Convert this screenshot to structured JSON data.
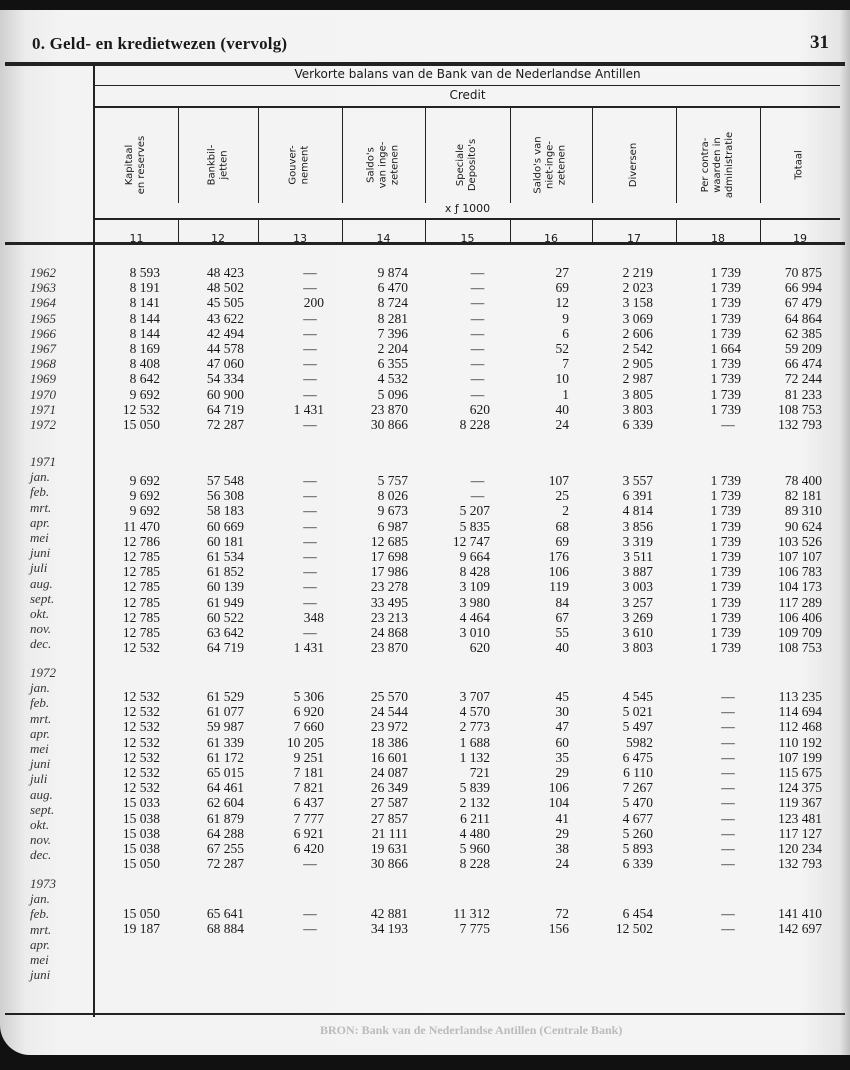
{
  "header": {
    "section_title": "0. Geld- en kredietwezen (vervolg)",
    "page_number": "31"
  },
  "table": {
    "title": "Verkorte balans van de Bank van de Nederlandse Antillen",
    "subtitle": "Credit",
    "unit": "x ƒ 1000",
    "columns": [
      {
        "label": "Kapitaal\nen reserves",
        "number": "11"
      },
      {
        "label": "Bankbil-\njetten",
        "number": "12"
      },
      {
        "label": "Gouver-\nnement",
        "number": "13"
      },
      {
        "label": "Saldo's\nvan inge-\nzetenen",
        "number": "14"
      },
      {
        "label": "Speciale\nDeposito's",
        "number": "15"
      },
      {
        "label": "Saldo's van\nniet-inge-\nzetenen",
        "number": "16"
      },
      {
        "label": "Diversen",
        "number": "17"
      },
      {
        "label": "Per contra-\nwaarden in\nadministratie",
        "number": "18"
      },
      {
        "label": "Totaal",
        "number": "19"
      }
    ],
    "blocks": [
      {
        "labels": [
          "1962",
          "1963",
          "1964",
          "1965",
          "1966",
          "1967",
          "1968",
          "1969",
          "1970",
          "1971",
          "1972"
        ],
        "rows": [
          [
            "8 593",
            "48 423",
            "—",
            "9 874",
            "—",
            "27",
            "2 219",
            "1 739",
            "70 875"
          ],
          [
            "8 191",
            "48 502",
            "—",
            "6 470",
            "—",
            "69",
            "2 023",
            "1 739",
            "66 994"
          ],
          [
            "8 141",
            "45 505",
            "200",
            "8 724",
            "—",
            "12",
            "3 158",
            "1 739",
            "67 479"
          ],
          [
            "8 144",
            "43 622",
            "—",
            "8 281",
            "—",
            "9",
            "3 069",
            "1 739",
            "64 864"
          ],
          [
            "8 144",
            "42 494",
            "—",
            "7 396",
            "—",
            "6",
            "2 606",
            "1 739",
            "62 385"
          ],
          [
            "8 169",
            "44 578",
            "—",
            "2 204",
            "—",
            "52",
            "2 542",
            "1 664",
            "59 209"
          ],
          [
            "8 408",
            "47 060",
            "—",
            "6 355",
            "—",
            "7",
            "2 905",
            "1 739",
            "66 474"
          ],
          [
            "8 642",
            "54 334",
            "—",
            "4 532",
            "—",
            "10",
            "2 987",
            "1 739",
            "72 244"
          ],
          [
            "9 692",
            "60 900",
            "—",
            "5 096",
            "—",
            "1",
            "3 805",
            "1 739",
            "81 233"
          ],
          [
            "12 532",
            "64 719",
            "1 431",
            "23 870",
            "620",
            "40",
            "3 803",
            "1 739",
            "108 753"
          ],
          [
            "15 050",
            "72 287",
            "—",
            "30 866",
            "8 228",
            "24",
            "6 339",
            "—",
            "132 793"
          ]
        ]
      },
      {
        "labels": [
          "1971",
          "jan.",
          "feb.",
          "mrt.",
          "apr.",
          "mei",
          "juni",
          "juli",
          "aug.",
          "sept.",
          "okt.",
          "nov.",
          "dec."
        ],
        "rows": [
          [
            "9 692",
            "57 548",
            "—",
            "5 757",
            "—",
            "107",
            "3 557",
            "1 739",
            "78 400"
          ],
          [
            "9 692",
            "56 308",
            "—",
            "8 026",
            "—",
            "25",
            "6 391",
            "1 739",
            "82 181"
          ],
          [
            "9 692",
            "58 183",
            "—",
            "9 673",
            "5 207",
            "2",
            "4 814",
            "1 739",
            "89 310"
          ],
          [
            "11 470",
            "60 669",
            "—",
            "6 987",
            "5 835",
            "68",
            "3 856",
            "1 739",
            "90 624"
          ],
          [
            "12 786",
            "60 181",
            "—",
            "12 685",
            "12 747",
            "69",
            "3 319",
            "1 739",
            "103 526"
          ],
          [
            "12 785",
            "61 534",
            "—",
            "17 698",
            "9 664",
            "176",
            "3 511",
            "1 739",
            "107 107"
          ],
          [
            "12 785",
            "61 852",
            "—",
            "17 986",
            "8 428",
            "106",
            "3 887",
            "1 739",
            "106 783"
          ],
          [
            "12 785",
            "60 139",
            "—",
            "23 278",
            "3 109",
            "119",
            "3 003",
            "1 739",
            "104 173"
          ],
          [
            "12 785",
            "61 949",
            "—",
            "33 495",
            "3 980",
            "84",
            "3 257",
            "1 739",
            "117 289"
          ],
          [
            "12 785",
            "60 522",
            "348",
            "23 213",
            "4 464",
            "67",
            "3 269",
            "1 739",
            "106 406"
          ],
          [
            "12 785",
            "63 642",
            "—",
            "24 868",
            "3 010",
            "55",
            "3 610",
            "1 739",
            "109 709"
          ],
          [
            "12 532",
            "64 719",
            "1 431",
            "23 870",
            "620",
            "40",
            "3 803",
            "1 739",
            "108 753"
          ]
        ]
      },
      {
        "labels": [
          "1972",
          "jan.",
          "feb.",
          "mrt.",
          "apr.",
          "mei",
          "juni",
          "juli",
          "aug.",
          "sept.",
          "okt.",
          "nov.",
          "dec."
        ],
        "rows": [
          [
            "12 532",
            "61 529",
            "5 306",
            "25 570",
            "3 707",
            "45",
            "4 545",
            "—",
            "113 235"
          ],
          [
            "12 532",
            "61 077",
            "6 920",
            "24 544",
            "4 570",
            "30",
            "5 021",
            "—",
            "114 694"
          ],
          [
            "12 532",
            "59 987",
            "7 660",
            "23 972",
            "2 773",
            "47",
            "5 497",
            "—",
            "112 468"
          ],
          [
            "12 532",
            "61 339",
            "10 205",
            "18 386",
            "1 688",
            "60",
            "5982",
            "—",
            "110 192"
          ],
          [
            "12 532",
            "61 172",
            "9 251",
            "16 601",
            "1 132",
            "35",
            "6 475",
            "—",
            "107 199"
          ],
          [
            "12 532",
            "65 015",
            "7 181",
            "24 087",
            "721",
            "29",
            "6 110",
            "—",
            "115 675"
          ],
          [
            "12 532",
            "64 461",
            "7 821",
            "26 349",
            "5 839",
            "106",
            "7 267",
            "—",
            "124 375"
          ],
          [
            "15 033",
            "62 604",
            "6 437",
            "27 587",
            "2 132",
            "104",
            "5 470",
            "—",
            "119 367"
          ],
          [
            "15 038",
            "61 879",
            "7 777",
            "27 857",
            "6 211",
            "41",
            "4 677",
            "—",
            "123 481"
          ],
          [
            "15 038",
            "64 288",
            "6 921",
            "21 111",
            "4 480",
            "29",
            "5 260",
            "—",
            "117 127"
          ],
          [
            "15 038",
            "67 255",
            "6 420",
            "19 631",
            "5 960",
            "38",
            "5 893",
            "—",
            "120 234"
          ],
          [
            "15 050",
            "72 287",
            "—",
            "30 866",
            "8 228",
            "24",
            "6 339",
            "—",
            "132 793"
          ]
        ]
      },
      {
        "labels": [
          "1973",
          "jan.",
          "feb.",
          "mrt.",
          "apr.",
          "mei",
          "juni"
        ],
        "rows": [
          [
            "15 050",
            "65 641",
            "—",
            "42 881",
            "11 312",
            "72",
            "6 454",
            "—",
            "141 410"
          ],
          [
            "19 187",
            "68 884",
            "—",
            "34 193",
            "7 775",
            "156",
            "12 502",
            "—",
            "142 697"
          ]
        ]
      }
    ]
  },
  "footer": {
    "bleed_through_text": "BRON: Bank van de Nederlandse Antillen (Centrale Bank)"
  }
}
